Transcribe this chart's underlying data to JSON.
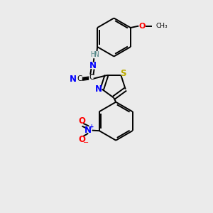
{
  "background_color": "#ebebeb",
  "bond_color": "#000000",
  "atom_colors": {
    "N": "#0000ff",
    "O": "#ff0000",
    "S": "#bbaa00",
    "C": "#000000",
    "H": "#558888"
  },
  "lw": 1.4,
  "fs": 7.5
}
